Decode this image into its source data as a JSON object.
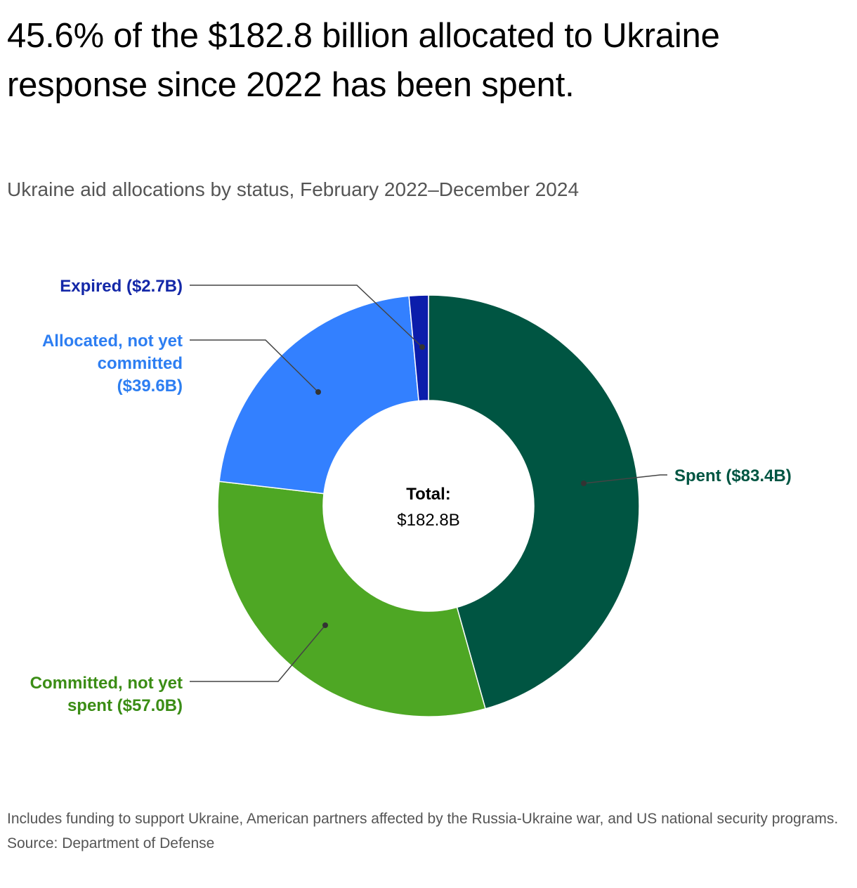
{
  "title": "45.6% of the $182.8 billion allocated to Ukraine response since 2022 has been spent.",
  "subtitle": "Ukraine aid allocations by status, February 2022–December 2024",
  "center_label": {
    "line1": "Total:",
    "line2": "$182.8B"
  },
  "chart_data": {
    "type": "pie",
    "donut": true,
    "total": 182.8,
    "unit": "$B",
    "slices": [
      {
        "label": "Spent ($83.4B)",
        "value": 83.4,
        "color": "#005542",
        "label_color": "#005542"
      },
      {
        "label": "Committed, not yet spent ($57.0B)",
        "value": 57.0,
        "color": "#4ea724",
        "label_color": "#3b8d15"
      },
      {
        "label": "Allocated, not yet committed ($39.6B)",
        "value": 39.6,
        "color": "#3380ff",
        "label_color": "#2d7ef2"
      },
      {
        "label": "Expired ($2.7B)",
        "value": 2.7,
        "color": "#0b1dab",
        "label_color": "#1428a8"
      }
    ]
  },
  "labels": {
    "spent": [
      "Spent ($83.4B)"
    ],
    "committed": [
      "Committed, not yet",
      "spent ($57.0B)"
    ],
    "allocated": [
      "Allocated, not yet",
      "committed",
      "($39.6B)"
    ],
    "expired": [
      "Expired ($2.7B)"
    ]
  },
  "footer": {
    "note": "Includes funding to support Ukraine, American partners affected by the Russia-Ukraine war, and US national security programs.",
    "source": "Source: Department of Defense"
  }
}
